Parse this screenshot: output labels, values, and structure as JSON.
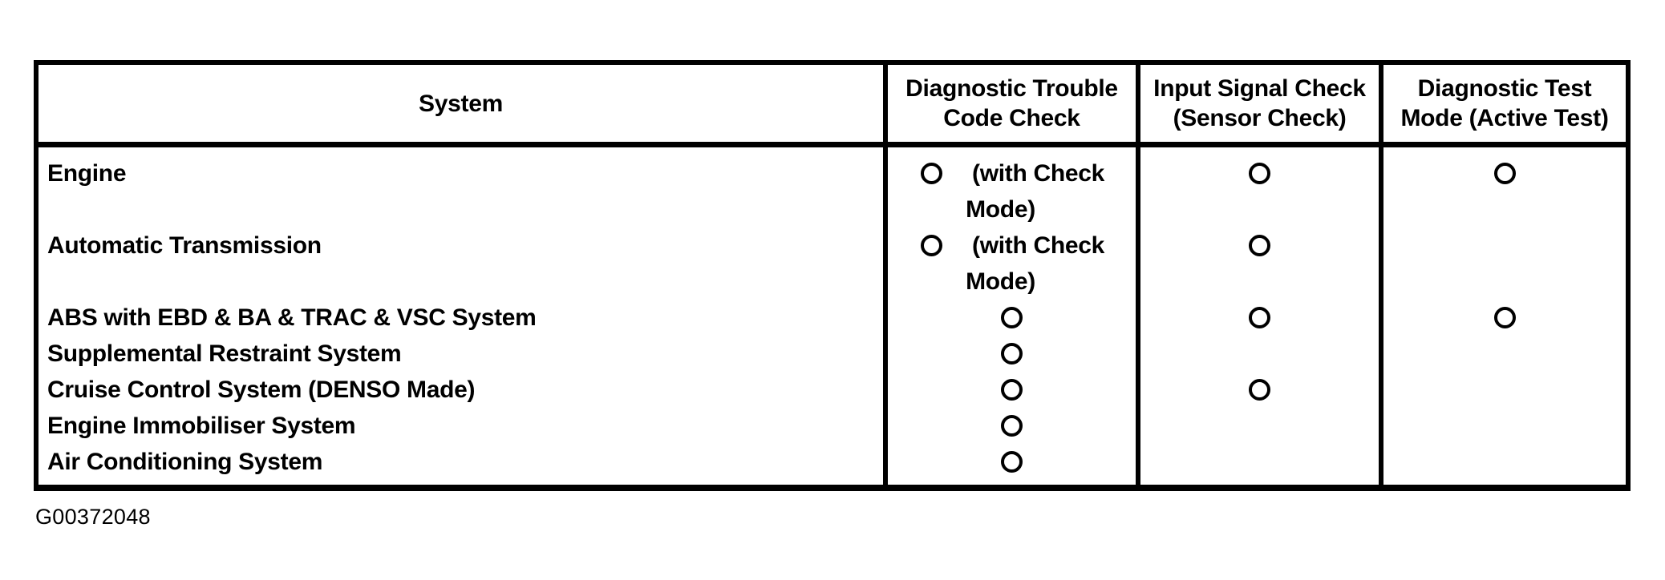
{
  "figure_id": "G00372048",
  "colors": {
    "ink": "#000000",
    "paper": "#ffffff"
  },
  "table": {
    "headers": {
      "system": "System",
      "dtc": {
        "line1": "Diagnostic Trouble",
        "line2": "Code Check"
      },
      "input": {
        "line1": "Input Signal Check",
        "line2": "(Sensor Check)"
      },
      "test": {
        "line1": "Diagnostic Test",
        "line2": "Mode (Active Test)"
      }
    },
    "circle_note": {
      "line1": "(with Check",
      "line2": "Mode)"
    },
    "rows": [
      {
        "system": "Engine",
        "dtc": "circle-with-check-mode",
        "input": "circle",
        "test": "circle"
      },
      {
        "system": "Automatic Transmission",
        "dtc": "circle-with-check-mode",
        "input": "circle",
        "test": "none"
      },
      {
        "system": "ABS with EBD & BA & TRAC & VSC System",
        "dtc": "circle",
        "input": "circle",
        "test": "circle"
      },
      {
        "system": "Supplemental Restraint System",
        "dtc": "circle",
        "input": "none",
        "test": "none"
      },
      {
        "system": "Cruise Control System (DENSO Made)",
        "dtc": "circle",
        "input": "circle",
        "test": "none"
      },
      {
        "system": "Engine Immobiliser System",
        "dtc": "circle",
        "input": "none",
        "test": "none"
      },
      {
        "system": "Air Conditioning System",
        "dtc": "circle",
        "input": "none",
        "test": "none"
      }
    ]
  }
}
